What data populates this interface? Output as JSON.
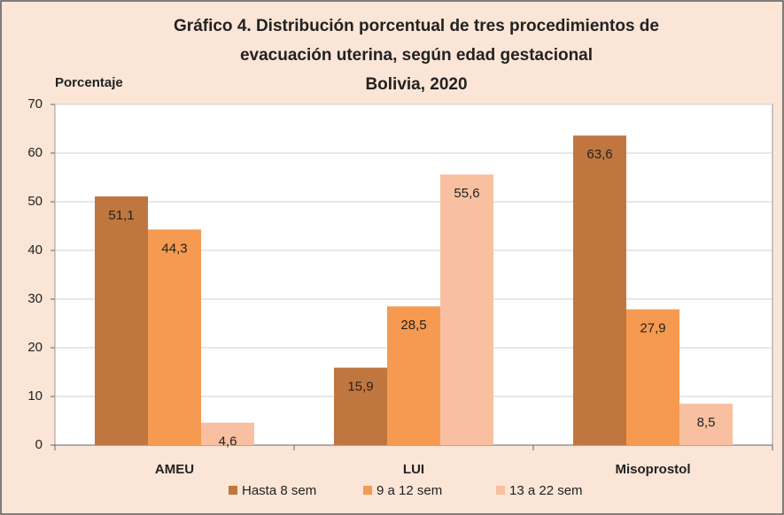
{
  "chart_data": {
    "type": "bar",
    "title": [
      "Gráfico 4. Distribución porcentual de tres procedimientos de",
      "evacuación uterina, según edad gestacional",
      "Bolivia, 2020"
    ],
    "y_label": "Porcentaje",
    "categories": [
      "AMEU",
      "LUI",
      "Misoprostol"
    ],
    "series": [
      {
        "name": "Hasta 8 sem",
        "color": "#c0763f",
        "values": [
          51.1,
          15.9,
          63.6
        ],
        "value_labels": [
          "51,1",
          "15,9",
          "63,6"
        ]
      },
      {
        "name": "9 a 12 sem",
        "color": "#f59a50",
        "values": [
          44.3,
          28.5,
          27.9
        ],
        "value_labels": [
          "44,3",
          "28,5",
          "27,9"
        ]
      },
      {
        "name": "13 a 22 sem",
        "color": "#f8c0a0",
        "values": [
          4.6,
          55.6,
          8.5
        ],
        "value_labels": [
          "4,6",
          "55,6",
          "8,5"
        ]
      }
    ],
    "ylim": [
      0,
      70
    ],
    "yticks": [
      0,
      10,
      20,
      30,
      40,
      50,
      60,
      70
    ],
    "grid": true,
    "legend": "bottom"
  }
}
